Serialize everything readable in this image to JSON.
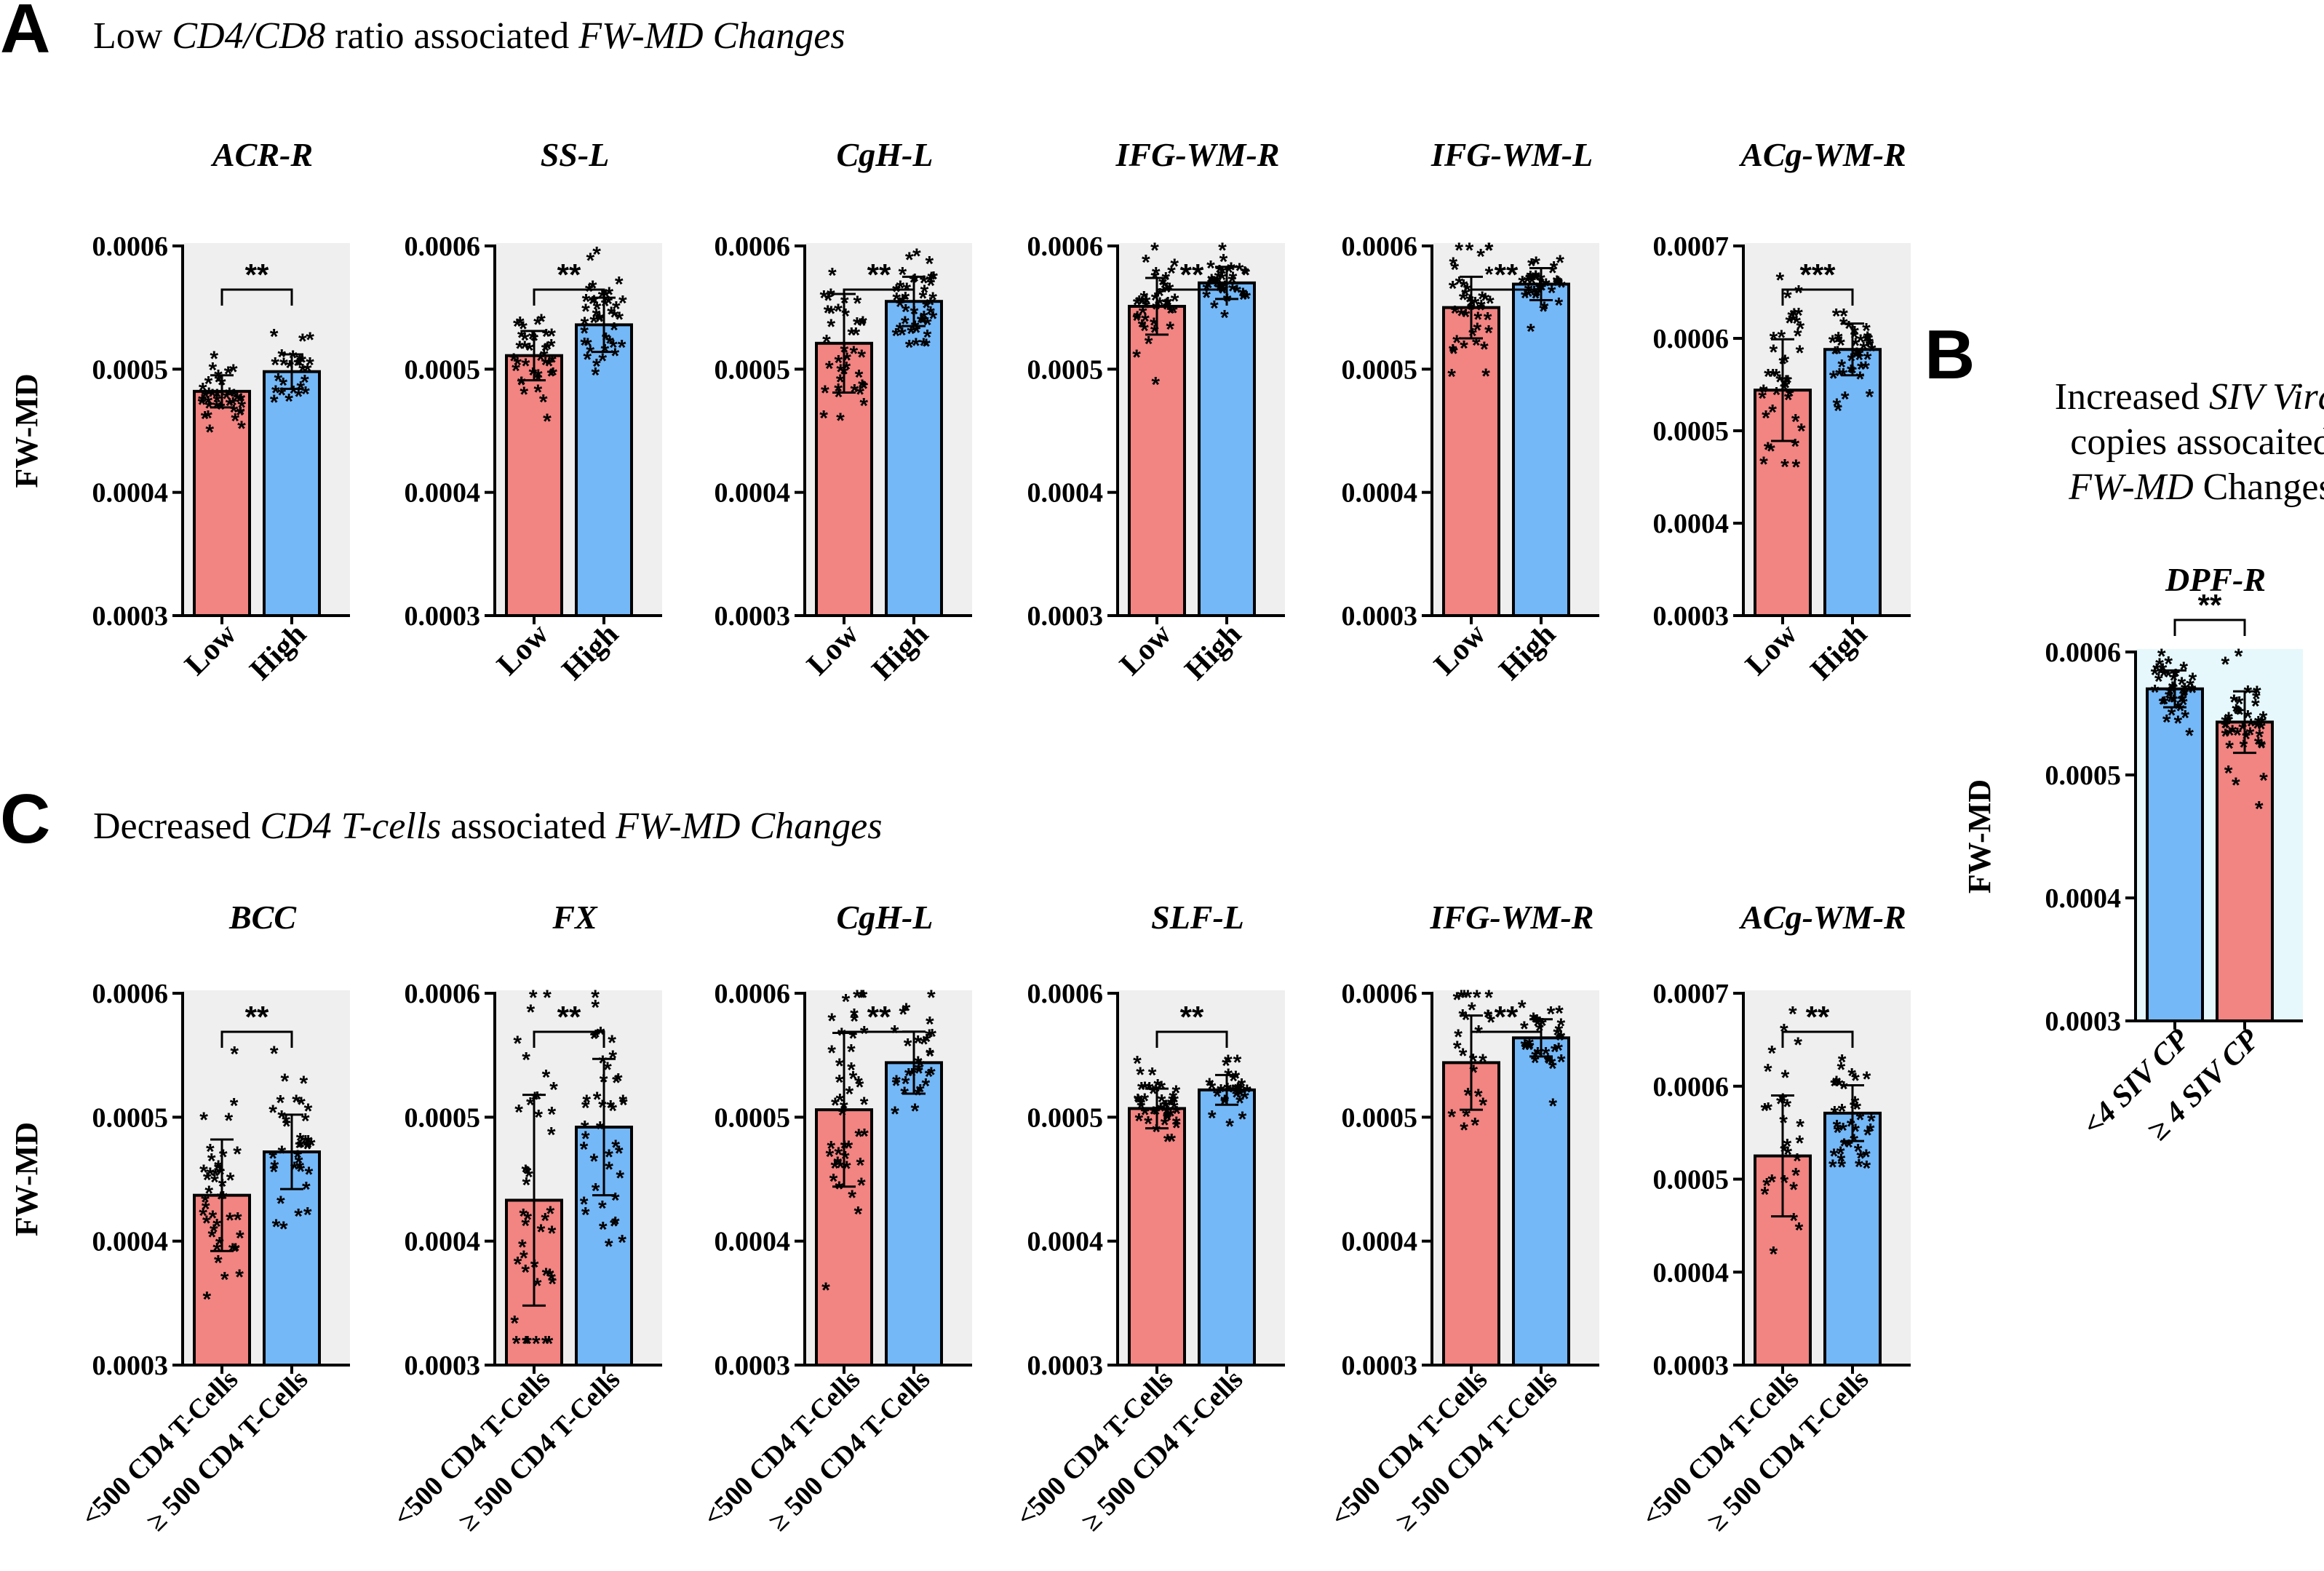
{
  "panels": [
    {
      "letter": "A",
      "title": [
        {
          "t": "Low "
        },
        {
          "t": "CD4/CD8",
          "i": true
        },
        {
          "t": " ratio associated "
        },
        {
          "t": "FW-MD Changes",
          "i": true
        }
      ]
    },
    {
      "letter": "B",
      "title_lines": [
        [
          {
            "t": "Increased "
          },
          {
            "t": "SIV Viral",
            "i": true
          }
        ],
        [
          {
            "t": "copies assocaited"
          }
        ],
        [
          {
            "t": "FW-MD",
            "i": true
          },
          {
            "t": " Changes"
          }
        ]
      ]
    },
    {
      "letter": "C",
      "title": [
        {
          "t": "Decreased "
        },
        {
          "t": "CD4 T-cells",
          "i": true
        },
        {
          "t": " associated "
        },
        {
          "t": "FW-MD Changes",
          "i": true
        }
      ]
    }
  ],
  "colors": {
    "red": "#f28482",
    "blue": "#74b8f8",
    "panel_bg": "#efefef",
    "panel_bg_b": "#e6f8fb",
    "ink": "#000000"
  },
  "chart_data": [
    {
      "type": "bar",
      "panel": "A",
      "title": "ACR-R",
      "ylabel": "FW-MD",
      "ylim": [
        0.0003,
        0.0006
      ],
      "yticks": [
        "0.0003",
        "0.0004",
        "0.0005",
        "0.0006"
      ],
      "categories": [
        "Low",
        "High"
      ],
      "values": [
        0.000482,
        0.000498
      ],
      "sd": [
        1.3e-05,
        1.4e-05
      ],
      "significance": "**",
      "bar_colors": [
        "red",
        "blue"
      ]
    },
    {
      "type": "bar",
      "panel": "A",
      "title": "SS-L",
      "ylabel": "",
      "ylim": [
        0.0003,
        0.0006
      ],
      "yticks": [
        "0.0003",
        "0.0004",
        "0.0005",
        "0.0006"
      ],
      "categories": [
        "Low",
        "High"
      ],
      "values": [
        0.000511,
        0.000536
      ],
      "sd": [
        2e-05,
        2.2e-05
      ],
      "significance": "**",
      "bar_colors": [
        "red",
        "blue"
      ]
    },
    {
      "type": "bar",
      "panel": "A",
      "title": "CgH-L",
      "ylabel": "",
      "ylim": [
        0.0003,
        0.0006
      ],
      "yticks": [
        "0.0003",
        "0.0004",
        "0.0005",
        "0.0006"
      ],
      "categories": [
        "Low",
        "High"
      ],
      "values": [
        0.000521,
        0.000555
      ],
      "sd": [
        4e-05,
        2e-05
      ],
      "significance": "**",
      "bar_colors": [
        "red",
        "blue"
      ]
    },
    {
      "type": "bar",
      "panel": "A",
      "title": "IFG-WM-R",
      "ylabel": "",
      "ylim": [
        0.0003,
        0.0006
      ],
      "yticks": [
        "0.0003",
        "0.0004",
        "0.0005",
        "0.0006"
      ],
      "categories": [
        "Low",
        "High"
      ],
      "values": [
        0.000551,
        0.00057
      ],
      "sd": [
        2.3e-05,
        1.3e-05
      ],
      "significance": "**",
      "bar_colors": [
        "red",
        "blue"
      ]
    },
    {
      "type": "bar",
      "panel": "A",
      "title": "IFG-WM-L",
      "ylabel": "",
      "ylim": [
        0.0003,
        0.0006
      ],
      "yticks": [
        "0.0003",
        "0.0004",
        "0.0005",
        "0.0006"
      ],
      "categories": [
        "Low",
        "High"
      ],
      "values": [
        0.00055,
        0.000569
      ],
      "sd": [
        2.5e-05,
        1.3e-05
      ],
      "significance": "**",
      "bar_colors": [
        "red",
        "blue"
      ]
    },
    {
      "type": "bar",
      "panel": "A",
      "title": "ACg-WM-R",
      "ylabel": "",
      "ylim": [
        0.0003,
        0.0007
      ],
      "yticks": [
        "0.0003",
        "0.0004",
        "0.0005",
        "0.0006",
        "0.0007"
      ],
      "categories": [
        "Low",
        "High"
      ],
      "values": [
        0.000544,
        0.000588
      ],
      "sd": [
        5.5e-05,
        2.8e-05
      ],
      "significance": "***",
      "bar_colors": [
        "red",
        "blue"
      ]
    },
    {
      "type": "bar",
      "panel": "B",
      "title": "DPF-R",
      "ylabel": "FW-MD",
      "ylim": [
        0.0003,
        0.0006
      ],
      "yticks": [
        "0.0003",
        "0.0004",
        "0.0005",
        "0.0006"
      ],
      "categories": [
        "<4 SIV CP",
        "≥ 4 SIV CP"
      ],
      "values": [
        0.00057,
        0.000543
      ],
      "sd": [
        1.5e-05,
        2.5e-05
      ],
      "significance": "**",
      "bar_colors": [
        "blue",
        "red"
      ]
    },
    {
      "type": "bar",
      "panel": "C",
      "title": "BCC",
      "ylabel": "FW-MD",
      "ylim": [
        0.0003,
        0.0006
      ],
      "yticks": [
        "0.0003",
        "0.0004",
        "0.0005",
        "0.0006"
      ],
      "categories": [
        "<500 CD4 T-Cells",
        "≥ 500 CD4 T-Cells"
      ],
      "values": [
        0.000437,
        0.000472
      ],
      "sd": [
        4.5e-05,
        3e-05
      ],
      "significance": "**",
      "bar_colors": [
        "red",
        "blue"
      ]
    },
    {
      "type": "bar",
      "panel": "C",
      "title": "FX",
      "ylabel": "",
      "ylim": [
        0.0003,
        0.0006
      ],
      "yticks": [
        "0.0003",
        "0.0004",
        "0.0005",
        "0.0006"
      ],
      "categories": [
        "<500 CD4 T-Cells",
        "≥ 500 CD4 T-Cells"
      ],
      "values": [
        0.000433,
        0.000492
      ],
      "sd": [
        8.5e-05,
        5.5e-05
      ],
      "significance": "**",
      "bar_colors": [
        "red",
        "blue"
      ]
    },
    {
      "type": "bar",
      "panel": "C",
      "title": "CgH-L",
      "ylabel": "",
      "ylim": [
        0.0003,
        0.0006
      ],
      "yticks": [
        "0.0003",
        "0.0004",
        "0.0005",
        "0.0006"
      ],
      "categories": [
        "<500 CD4 T-Cells",
        "≥ 500 CD4 T-Cells"
      ],
      "values": [
        0.000506,
        0.000544
      ],
      "sd": [
        6.2e-05,
        2.5e-05
      ],
      "significance": "**",
      "bar_colors": [
        "red",
        "blue"
      ]
    },
    {
      "type": "bar",
      "panel": "C",
      "title": "SLF-L",
      "ylabel": "",
      "ylim": [
        0.0003,
        0.0006
      ],
      "yticks": [
        "0.0003",
        "0.0004",
        "0.0005",
        "0.0006"
      ],
      "categories": [
        "<500 CD4 T-Cells",
        "≥ 500 CD4 T-Cells"
      ],
      "values": [
        0.000507,
        0.000522
      ],
      "sd": [
        1.6e-05,
        1.2e-05
      ],
      "significance": "**",
      "bar_colors": [
        "red",
        "blue"
      ]
    },
    {
      "type": "bar",
      "panel": "C",
      "title": "IFG-WM-R",
      "ylabel": "",
      "ylim": [
        0.0003,
        0.0006
      ],
      "yticks": [
        "0.0003",
        "0.0004",
        "0.0005",
        "0.0006"
      ],
      "categories": [
        "<500 CD4 T-Cells",
        "≥ 500 CD4 T-Cells"
      ],
      "values": [
        0.000544,
        0.000564
      ],
      "sd": [
        3.8e-05,
        1.5e-05
      ],
      "significance": "**",
      "bar_colors": [
        "red",
        "blue"
      ]
    },
    {
      "type": "bar",
      "panel": "C",
      "title": "ACg-WM-R",
      "ylabel": "",
      "ylim": [
        0.0003,
        0.0007
      ],
      "yticks": [
        "0.0003",
        "0.0004",
        "0.0005",
        "0.0006",
        "0.0007"
      ],
      "categories": [
        "<500 CD4 T-Cells",
        "≥ 500 CD4 T-Cells"
      ],
      "values": [
        0.000525,
        0.000571
      ],
      "sd": [
        6.5e-05,
        3e-05
      ],
      "significance": "**",
      "bar_colors": [
        "red",
        "blue"
      ]
    }
  ]
}
